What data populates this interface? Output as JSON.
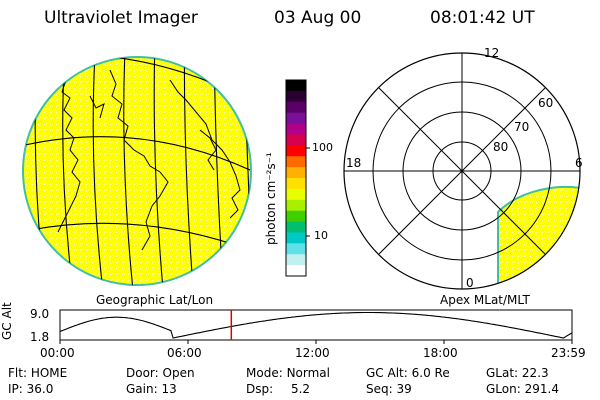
{
  "header": {
    "app_title": "Ultraviolet Imager",
    "date": "03 Aug 00",
    "time": "08:01:42 UT"
  },
  "colorbar": {
    "unit_label": "photon cm⁻²s⁻¹",
    "tick_labels": [
      "100",
      "10"
    ],
    "colors": [
      "#000000",
      "#2a0033",
      "#5a0066",
      "#7a1099",
      "#b0008a",
      "#d8004c",
      "#ff0000",
      "#ff6a00",
      "#ffb000",
      "#ffe000",
      "#e8ff00",
      "#a8f000",
      "#40d000",
      "#00c070",
      "#00c8c8",
      "#60e0e8",
      "#c0f0f0",
      "#ffffff"
    ]
  },
  "left_panel": {
    "label": "Geographic Lat/Lon",
    "fill_color": "#ffff00",
    "rim_color": "#40c0a0"
  },
  "right_panel": {
    "label": "Apex MLat/MLT",
    "mlt_labels": {
      "top": "12",
      "left": "18",
      "right": "6",
      "bottom": "0"
    },
    "lat_labels": [
      "60",
      "70",
      "80"
    ],
    "fill_color": "#ffff00",
    "rim_color": "#40c0a0"
  },
  "orbit_plot": {
    "axis_label": "GC Alt",
    "y_ticks": [
      "9.0",
      "1.8"
    ],
    "x_ticks": [
      "00:00",
      "06:00",
      "12:00",
      "18:00",
      "23:59"
    ],
    "current_time_marker_hours": 8.03,
    "marker_color": "#e00000"
  },
  "status": {
    "rows": [
      [
        {
          "key": "Flt:",
          "value": "HOME"
        },
        {
          "key": "Door:",
          "value": "Open"
        },
        {
          "key": "Mode:",
          "value": "Normal"
        },
        {
          "key": "GC Alt:",
          "value": "6.0 Re"
        },
        {
          "key": "GLat:",
          "value": "22.3"
        }
      ],
      [
        {
          "key": "IP:",
          "value": "36.0"
        },
        {
          "key": "Gain:",
          "value": "13"
        },
        {
          "key": "Dsp:",
          "value": "5.2"
        },
        {
          "key": "Seq:",
          "value": "39"
        },
        {
          "key": "GLon:",
          "value": "291.4"
        }
      ]
    ]
  }
}
